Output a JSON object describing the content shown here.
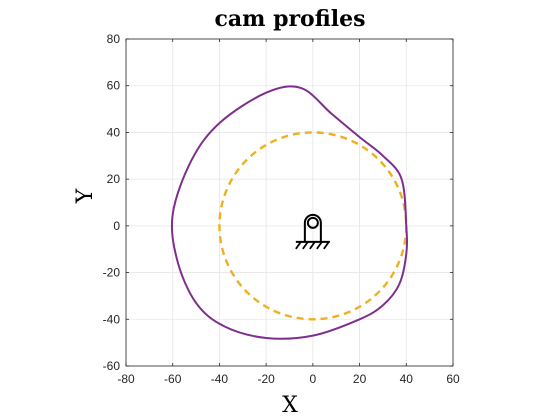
{
  "chart_data": {
    "type": "line",
    "title": "cam profiles",
    "xlabel": "X",
    "ylabel": "Y",
    "xlim": [
      -80,
      60
    ],
    "ylim": [
      -60,
      80
    ],
    "xticks": [
      -80,
      -60,
      -40,
      -20,
      0,
      20,
      40,
      60
    ],
    "yticks": [
      -60,
      -40,
      -20,
      0,
      20,
      40,
      60,
      80
    ],
    "grid": true,
    "series": [
      {
        "style": "dashed",
        "color": "#EDB120",
        "circle": {
          "center": [
            0,
            0
          ],
          "radius": 40
        }
      },
      {
        "style": "solid",
        "color": "#7E2F8E",
        "points": [
          [
            40,
            0
          ],
          [
            38,
            20
          ],
          [
            30,
            30
          ],
          [
            20,
            38
          ],
          [
            8,
            48
          ],
          [
            -5,
            59
          ],
          [
            -20,
            57
          ],
          [
            -40,
            44
          ],
          [
            -52,
            28
          ],
          [
            -60,
            5
          ],
          [
            -58,
            -15
          ],
          [
            -50,
            -33
          ],
          [
            -38,
            -43
          ],
          [
            -20,
            -48
          ],
          [
            0,
            -47
          ],
          [
            20,
            -40
          ],
          [
            30,
            -34
          ],
          [
            37,
            -25
          ],
          [
            40,
            -12
          ],
          [
            40,
            0
          ]
        ]
      }
    ],
    "follower_symbol": {
      "x": 0,
      "y": 0
    }
  }
}
